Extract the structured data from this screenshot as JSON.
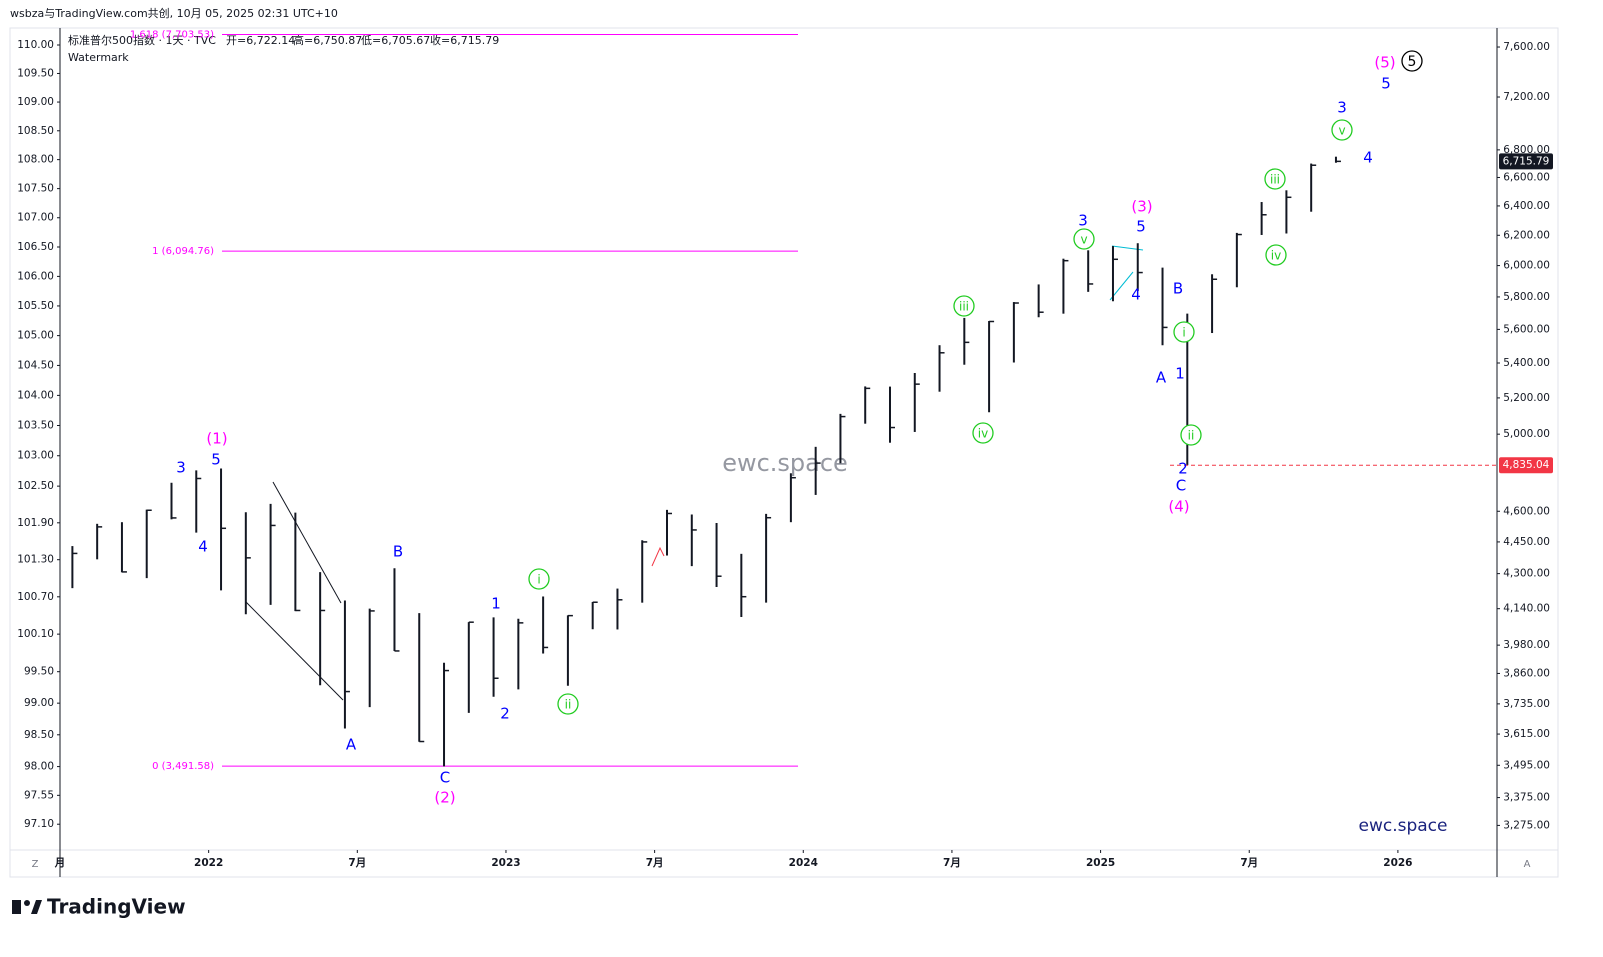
{
  "top_caption": "wsbza与TradingView.com共创, 10月 05, 2025 02:31 UTC+10",
  "brand": "TradingView",
  "corner_left": "Z",
  "corner_right": "A",
  "chart_data": {
    "type": "ohlc",
    "legend_title": "标准普尔500指数 · 1天 · TVC",
    "legend_values": [
      "开=6,722.14",
      "高=6,750.87",
      "低=6,705.67",
      "收=6,715.79"
    ],
    "legend_sub": "Watermark",
    "watermark": "ewc.space",
    "signature": "ewc.space",
    "log_scale": true,
    "x": [
      "2021-07",
      "2021-08",
      "2021-09",
      "2021-10",
      "2021-11",
      "2021-12",
      "2022-01",
      "2022-02",
      "2022-03",
      "2022-04",
      "2022-05",
      "2022-06",
      "2022-07",
      "2022-08",
      "2022-09",
      "2022-10",
      "2022-11",
      "2022-12",
      "2023-01",
      "2023-02",
      "2023-03",
      "2023-04",
      "2023-05",
      "2023-06",
      "2023-07",
      "2023-08",
      "2023-09",
      "2023-10",
      "2023-11",
      "2023-12",
      "2024-01",
      "2024-02",
      "2024-03",
      "2024-04",
      "2024-05",
      "2024-06",
      "2024-07",
      "2024-08",
      "2024-09",
      "2024-10",
      "2024-11",
      "2024-12",
      "2025-01",
      "2025-02",
      "2025-03",
      "2025-04",
      "2025-05",
      "2025-06",
      "2025-07",
      "2025-08",
      "2025-09",
      "2025-10"
    ],
    "series": [
      {
        "name": "标准普尔500指数",
        "color": "#131722",
        "axis": "y2",
        "high": [
          4430,
          4538,
          4546,
          4608,
          4744,
          4808,
          4818,
          4595,
          4637,
          4593,
          4307,
          4177,
          4140,
          4325,
          4120,
          3905,
          4080,
          4101,
          4095,
          4195,
          4110,
          4170,
          4231,
          4458,
          4607,
          4584,
          4542,
          4393,
          4587,
          4793,
          4932,
          5111,
          5265,
          5264,
          5342,
          5505,
          5670,
          5651,
          5768,
          5879,
          6045,
          6100,
          6128,
          6147,
          5987,
          5696,
          5944,
          6216,
          6427,
          6509,
          6700,
          6750
        ],
        "low": [
          4233,
          4367,
          4306,
          4279,
          4560,
          4495,
          4223,
          4115,
          4157,
          4129,
          3811,
          3637,
          3722,
          3955,
          3585,
          3491,
          3699,
          3764,
          3794,
          3944,
          3809,
          4049,
          4048,
          4167,
          4385,
          4335,
          4238,
          4103,
          4167,
          4546,
          4682,
          4845,
          5057,
          4954,
          5012,
          5235,
          5390,
          5120,
          5403,
          5674,
          5696,
          5832,
          5773,
          5837,
          5505,
          4835,
          5578,
          5861,
          6202,
          6212,
          6360,
          6706
        ],
        "close": [
          4395,
          4523,
          4308,
          4605,
          4567,
          4766,
          4516,
          4374,
          4530,
          4132,
          4132,
          3785,
          4130,
          3955,
          3586,
          3872,
          4080,
          3840,
          4077,
          3970,
          4109,
          4169,
          4180,
          4450,
          4589,
          4508,
          4288,
          4194,
          4568,
          4770,
          4846,
          5096,
          5254,
          5036,
          5278,
          5460,
          5522,
          5648,
          5762,
          5705,
          6032,
          5882,
          6041,
          5955,
          5612,
          5569,
          5912,
          6205,
          6339,
          6460,
          6688,
          6716
        ]
      }
    ],
    "xlim": [
      "2021-07",
      "2026-05"
    ],
    "xticks": [
      {
        "value": "2021-07",
        "label": "月"
      },
      {
        "value": "2022-01",
        "label": "2022"
      },
      {
        "value": "2022-07",
        "label": "7月"
      },
      {
        "value": "2023-01",
        "label": "2023"
      },
      {
        "value": "2023-07",
        "label": "7月"
      },
      {
        "value": "2024-01",
        "label": "2024"
      },
      {
        "value": "2024-07",
        "label": "7月"
      },
      {
        "value": "2025-01",
        "label": "2025"
      },
      {
        "value": "2025-07",
        "label": "7月"
      },
      {
        "value": "2026-01",
        "label": "2026"
      }
    ],
    "ylim": [
      96.7,
      110.3
    ],
    "yticks": [
      {
        "value": 110,
        "label": "110.00"
      },
      {
        "value": 109.5,
        "label": "109.50"
      },
      {
        "value": 109,
        "label": "109.00"
      },
      {
        "value": 108.5,
        "label": "108.50"
      },
      {
        "value": 108,
        "label": "108.00"
      },
      {
        "value": 107.5,
        "label": "107.50"
      },
      {
        "value": 107,
        "label": "107.00"
      },
      {
        "value": 106.5,
        "label": "106.50"
      },
      {
        "value": 106,
        "label": "106.00"
      },
      {
        "value": 105.5,
        "label": "105.50"
      },
      {
        "value": 105,
        "label": "105.00"
      },
      {
        "value": 104.5,
        "label": "104.50"
      },
      {
        "value": 104,
        "label": "104.00"
      },
      {
        "value": 103.5,
        "label": "103.50"
      },
      {
        "value": 103,
        "label": "103.00"
      },
      {
        "value": 102.5,
        "label": "102.50"
      },
      {
        "value": 101.9,
        "label": "101.90"
      },
      {
        "value": 101.3,
        "label": "101.30"
      },
      {
        "value": 100.7,
        "label": "100.70"
      },
      {
        "value": 100.1,
        "label": "100.10"
      },
      {
        "value": 99.5,
        "label": "99.50"
      },
      {
        "value": 99,
        "label": "99.00"
      },
      {
        "value": 98.5,
        "label": "98.50"
      },
      {
        "value": 98,
        "label": "98.00"
      },
      97.55,
      {
        "value": 97.1,
        "label": "97.10"
      }
    ],
    "y2lim": [
      3189,
      7758
    ],
    "y2ticks": [
      {
        "value": 7600,
        "label": "7,600.00"
      },
      {
        "value": 7200,
        "label": "7,200.00"
      },
      {
        "value": 6800,
        "label": "6,800.00"
      },
      {
        "value": 6600,
        "label": "6,600.00"
      },
      {
        "value": 6400,
        "label": "6,400.00"
      },
      {
        "value": 6200,
        "label": "6,200.00"
      },
      {
        "value": 6000,
        "label": "6,000.00"
      },
      {
        "value": 5800,
        "label": "5,800.00"
      },
      {
        "value": 5600,
        "label": "5,600.00"
      },
      {
        "value": 5400,
        "label": "5,400.00"
      },
      {
        "value": 5200,
        "label": "5,200.00"
      },
      {
        "value": 5000,
        "label": "5,000.00"
      },
      {
        "value": 4600,
        "label": "4,600.00"
      },
      {
        "value": 4450,
        "label": "4,450.00"
      },
      {
        "value": 4300,
        "label": "4,300.00"
      },
      {
        "value": 4140,
        "label": "4,140.00"
      },
      {
        "value": 3980,
        "label": "3,980.00"
      },
      {
        "value": 3860,
        "label": "3,860.00"
      },
      {
        "value": 3735,
        "label": "3,735.00"
      },
      {
        "value": 3615,
        "label": "3,615.00"
      },
      {
        "value": 3495,
        "label": "3,495.00"
      },
      {
        "value": 3375,
        "label": "3,375.00"
      },
      {
        "value": 3275,
        "label": "3,275.00"
      }
    ],
    "fib_levels": [
      {
        "value": 7703.53,
        "label": "1.618 (7,703.53)"
      },
      {
        "value": 6094.76,
        "label": "1 (6,094.76)"
      },
      {
        "value": 3491.58,
        "label": "0 (3,491.58)"
      }
    ],
    "fib_color": "#ff00ff",
    "last_price": {
      "value": 6715.79,
      "label": "6,715.79"
    },
    "price_line": {
      "value": 4835.04,
      "label": "4,835.04",
      "color": "#f23645"
    },
    "annotations": [
      "(1)",
      "3",
      "5",
      "4",
      "A",
      "B",
      "C",
      "(2)",
      "1",
      "2",
      "i",
      "ii",
      "iii",
      "iv",
      "v",
      "3",
      "(3)",
      "5",
      "4",
      "B",
      "A",
      "1",
      "i",
      "ii",
      "2",
      "C",
      "(4)",
      "iii",
      "iv",
      "3",
      "v",
      "4",
      "5",
      "(5)",
      "5"
    ]
  }
}
